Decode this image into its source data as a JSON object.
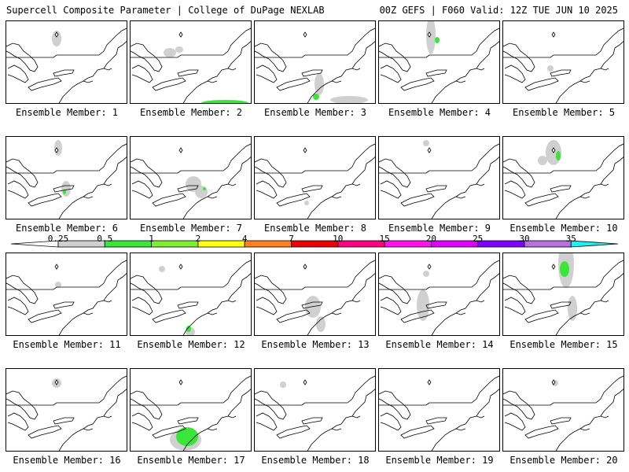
{
  "header": {
    "left": "Supercell Composite Parameter | College of DuPage NEXLAB",
    "right": "00Z GEFS | F060 Valid: 12Z TUE JUN 10 2025"
  },
  "colorbar": {
    "ticks": [
      "0.25",
      "0.5",
      "1",
      "2",
      "4",
      "7",
      "10",
      "15",
      "20",
      "25",
      "30",
      "35"
    ],
    "colors": [
      "#d0d0d0",
      "#39e639",
      "#80ee30",
      "#ffff10",
      "#ff8020",
      "#ee0000",
      "#ff0080",
      "#ff10ee",
      "#e000ff",
      "#8000ff",
      "#b870e0",
      "#20f0f0"
    ]
  },
  "panels": [
    {
      "caption": "Ensemble Member: 1",
      "features": [
        {
          "kind": "gray",
          "shape": "blob"
        }
      ]
    },
    {
      "caption": "Ensemble Member: 2",
      "features": [
        {
          "kind": "gray",
          "shape": "blob"
        },
        {
          "kind": "green",
          "shape": "stripe"
        }
      ]
    },
    {
      "caption": "Ensemble Member: 3",
      "features": [
        {
          "kind": "gray",
          "shape": "blob"
        },
        {
          "kind": "green",
          "shape": "spot"
        }
      ]
    },
    {
      "caption": "Ensemble Member: 4",
      "features": [
        {
          "kind": "gray",
          "shape": "blob"
        },
        {
          "kind": "green",
          "shape": "spot"
        }
      ]
    },
    {
      "caption": "Ensemble Member: 5",
      "features": [
        {
          "kind": "gray",
          "shape": "spot"
        }
      ]
    },
    {
      "caption": "Ensemble Member: 6",
      "features": [
        {
          "kind": "gray",
          "shape": "blob"
        },
        {
          "kind": "green",
          "shape": "spot"
        }
      ]
    },
    {
      "caption": "Ensemble Member: 7",
      "features": [
        {
          "kind": "gray",
          "shape": "blob"
        },
        {
          "kind": "green",
          "shape": "spot"
        }
      ]
    },
    {
      "caption": "Ensemble Member: 8",
      "features": [
        {
          "kind": "gray",
          "shape": "spot"
        }
      ]
    },
    {
      "caption": "Ensemble Member: 9",
      "features": [
        {
          "kind": "gray",
          "shape": "spot"
        }
      ]
    },
    {
      "caption": "Ensemble Member: 10",
      "features": [
        {
          "kind": "gray",
          "shape": "blob"
        },
        {
          "kind": "green",
          "shape": "spot"
        }
      ]
    },
    {
      "caption": "Ensemble Member: 11",
      "features": [
        {
          "kind": "gray",
          "shape": "spot"
        }
      ]
    },
    {
      "caption": "Ensemble Member: 12",
      "features": [
        {
          "kind": "gray",
          "shape": "blob"
        },
        {
          "kind": "green",
          "shape": "spot"
        }
      ]
    },
    {
      "caption": "Ensemble Member: 13",
      "features": [
        {
          "kind": "gray",
          "shape": "blob"
        }
      ]
    },
    {
      "caption": "Ensemble Member: 14",
      "features": [
        {
          "kind": "gray",
          "shape": "blob"
        }
      ]
    },
    {
      "caption": "Ensemble Member: 15",
      "features": [
        {
          "kind": "gray",
          "shape": "blob"
        },
        {
          "kind": "green",
          "shape": "spot"
        }
      ]
    },
    {
      "caption": "Ensemble Member: 16",
      "features": [
        {
          "kind": "gray",
          "shape": "spot"
        }
      ]
    },
    {
      "caption": "Ensemble Member: 17",
      "features": [
        {
          "kind": "gray",
          "shape": "blob"
        },
        {
          "kind": "green",
          "shape": "blob"
        }
      ]
    },
    {
      "caption": "Ensemble Member: 18",
      "features": [
        {
          "kind": "gray",
          "shape": "spot"
        }
      ]
    },
    {
      "caption": "Ensemble Member: 19",
      "features": []
    },
    {
      "caption": "Ensemble Member: 20",
      "features": [
        {
          "kind": "gray",
          "shape": "spot"
        }
      ]
    }
  ]
}
